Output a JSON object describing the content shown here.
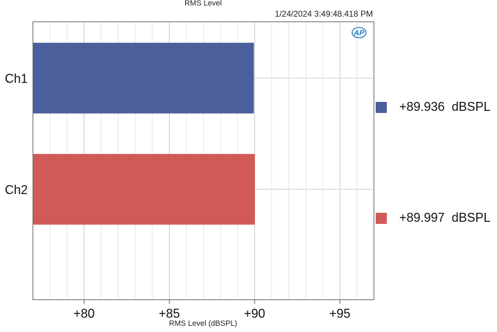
{
  "chart_data": {
    "type": "bar",
    "orientation": "horizontal",
    "title": "RMS Level",
    "timestamp": "1/24/2024 3:49:48.418 PM",
    "xlabel": "RMS Level (dBSPL)",
    "ylabel": "",
    "xlim": [
      77,
      97
    ],
    "xticks": [
      80,
      85,
      90,
      95
    ],
    "xtick_labels": [
      "+80",
      "+85",
      "+90",
      "+95"
    ],
    "grid": true,
    "categories": [
      "Ch1",
      "Ch2"
    ],
    "values": [
      89.936,
      89.997
    ],
    "colors": [
      "#4a5f9b",
      "#d15a58"
    ],
    "legend": {
      "placement": "right",
      "entries": [
        {
          "label": "+89.936  dBSPL",
          "color": "#4a5f9b"
        },
        {
          "label": "+89.997  dBSPL",
          "color": "#d15a58"
        }
      ]
    }
  },
  "logo": {
    "text": "AP",
    "color": "#1f7fc0"
  }
}
